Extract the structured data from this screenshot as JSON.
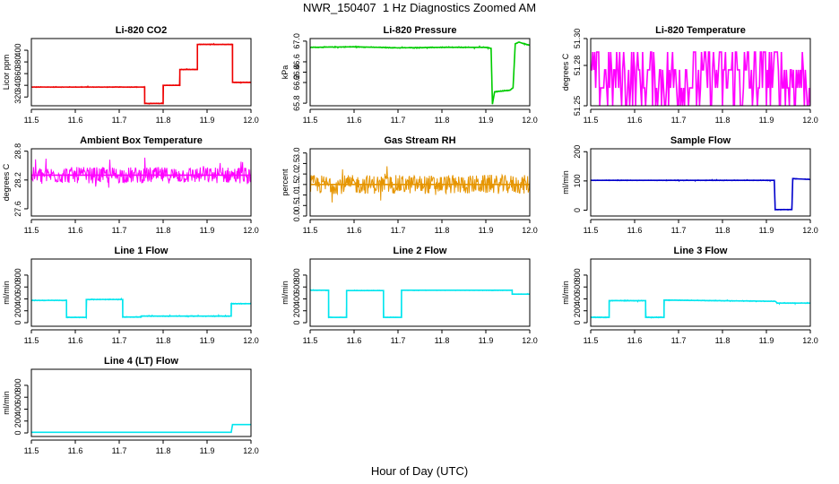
{
  "page": {
    "title": "NWR_150407  1 Hz Diagnostics Zoomed AM",
    "xaxis_title": "Hour of Day (UTC)"
  },
  "colors": {
    "red": "#ee0000",
    "green": "#00cc00",
    "magenta": "#ff00ff",
    "orange": "#e69500",
    "blue": "#0000cc",
    "cyan": "#00e5ee"
  },
  "chart_data": [
    {
      "type": "line",
      "title": "Li-820 CO2",
      "ylabel": "Licor ppm",
      "color": "red",
      "noise": 0.8,
      "xlim": [
        11.5,
        12.0
      ],
      "ylim": [
        305,
        420
      ],
      "xticks": [
        "11.5",
        "11.6",
        "11.7",
        "11.8",
        "11.9",
        "12.0"
      ],
      "yticks": [
        {
          "v": 320,
          "l": "320"
        },
        {
          "v": 340,
          "l": "340"
        },
        {
          "v": 360,
          "l": "360"
        },
        {
          "v": 380,
          "l": "380"
        },
        {
          "v": 400,
          "l": "400"
        }
      ],
      "series": [
        {
          "x": [
            11.5,
            11.758,
            11.758,
            11.8,
            11.8,
            11.8,
            11.8,
            11.838,
            11.838,
            11.878,
            11.878,
            11.958,
            11.958,
            12.0
          ],
          "y": [
            337,
            337,
            309,
            309,
            338,
            340,
            340,
            340,
            367,
            367,
            410,
            410,
            345,
            345
          ]
        }
      ]
    },
    {
      "type": "line",
      "title": "Li-820 Pressure",
      "ylabel": "kPa",
      "color": "green",
      "noise": 0.012,
      "xlim": [
        11.5,
        12.0
      ],
      "ylim": [
        65.75,
        67.05
      ],
      "xticks": [
        "11.5",
        "11.6",
        "11.7",
        "11.8",
        "11.9",
        "12.0"
      ],
      "yticks": [
        {
          "v": 65.8,
          "l": "65.8"
        },
        {
          "v": 66.2,
          "l": "66.2"
        },
        {
          "v": 66.4,
          "l": "66.4"
        },
        {
          "v": 66.6,
          "l": "66.6"
        },
        {
          "v": 67.0,
          "l": "67.0"
        }
      ],
      "series": [
        {
          "x": [
            11.5,
            11.6,
            11.7,
            11.8,
            11.9,
            11.912,
            11.915,
            11.92,
            11.955,
            11.962,
            11.967,
            11.975,
            12.0
          ],
          "y": [
            66.88,
            66.89,
            66.87,
            66.88,
            66.88,
            66.86,
            65.78,
            66.02,
            66.05,
            66.1,
            66.95,
            66.98,
            66.92
          ]
        }
      ]
    },
    {
      "type": "step_noise",
      "title": "Li-820 Temperature",
      "ylabel": "degrees C",
      "color": "magenta",
      "xlim": [
        11.5,
        12.0
      ],
      "ylim": [
        51.25,
        51.3
      ],
      "xticks": [
        "11.5",
        "11.6",
        "11.7",
        "11.8",
        "11.9",
        "12.0"
      ],
      "yticks": [
        {
          "v": 51.25,
          "l": "51.25"
        },
        {
          "v": 51.28,
          "l": "51.28"
        },
        {
          "v": 51.3,
          "l": "51.30"
        }
      ],
      "levels": [
        51.25,
        51.2633,
        51.2767,
        51.29
      ]
    },
    {
      "type": "line",
      "title": "Ambient Box Temperature",
      "ylabel": "degrees C",
      "color": "magenta",
      "noise": 0.17,
      "xlim": [
        11.5,
        12.0
      ],
      "ylim": [
        27.45,
        28.85
      ],
      "xticks": [
        "11.5",
        "11.6",
        "11.7",
        "11.8",
        "11.9",
        "12.0"
      ],
      "yticks": [
        {
          "v": 27.6,
          "l": "27.6"
        },
        {
          "v": 28.2,
          "l": "28.2"
        },
        {
          "v": 28.8,
          "l": "28.8"
        }
      ],
      "series": [
        {
          "x": [
            11.5,
            12.0
          ],
          "y": [
            28.3,
            28.3
          ]
        }
      ]
    },
    {
      "type": "line",
      "title": "Gas Stream RH",
      "ylabel": "percent",
      "color": "orange",
      "noise": 0.45,
      "xlim": [
        11.5,
        12.0
      ],
      "ylim": [
        0,
        3.2
      ],
      "xticks": [
        "11.5",
        "11.6",
        "11.7",
        "11.8",
        "11.9",
        "12.0"
      ],
      "yticks": [
        {
          "v": 0,
          "l": "0.0"
        },
        {
          "v": 0.5,
          "l": "0.5"
        },
        {
          "v": 1.0,
          "l": "1.0"
        },
        {
          "v": 1.5,
          "l": "1.5"
        },
        {
          "v": 2.0,
          "l": "2.0"
        },
        {
          "v": 2.5,
          "l": "2.5"
        },
        {
          "v": 3.0,
          "l": "3.0"
        }
      ],
      "series": [
        {
          "x": [
            11.5,
            12.0
          ],
          "y": [
            1.5,
            1.5
          ]
        }
      ]
    },
    {
      "type": "line",
      "title": "Sample Flow",
      "ylabel": "ml/min",
      "color": "blue",
      "noise": 1.5,
      "xlim": [
        11.5,
        12.0
      ],
      "ylim": [
        -20,
        210
      ],
      "xticks": [
        "11.5",
        "11.6",
        "11.7",
        "11.8",
        "11.9",
        "12.0"
      ],
      "yticks": [
        {
          "v": 0,
          "l": "0"
        },
        {
          "v": 100,
          "l": "100"
        },
        {
          "v": 200,
          "l": "200"
        }
      ],
      "series": [
        {
          "x": [
            11.5,
            11.918,
            11.92,
            11.958,
            11.96,
            12.0
          ],
          "y": [
            102,
            102,
            2,
            2,
            108,
            105
          ]
        }
      ]
    },
    {
      "type": "line",
      "title": "Line 1 Flow",
      "ylabel": "ml/min",
      "color": "cyan",
      "noise": 9,
      "xlim": [
        11.5,
        12.0
      ],
      "ylim": [
        -60,
        1070
      ],
      "xticks": [
        "11.5",
        "11.6",
        "11.7",
        "11.8",
        "11.9",
        "12.0"
      ],
      "yticks": [
        {
          "v": 0,
          "l": "0"
        },
        {
          "v": 200,
          "l": "200"
        },
        {
          "v": 400,
          "l": "400"
        },
        {
          "v": 600,
          "l": "600"
        },
        {
          "v": 800,
          "l": "800"
        }
      ],
      "series": [
        {
          "x": [
            11.5,
            11.58,
            11.58,
            11.625,
            11.625,
            11.708,
            11.708,
            11.75,
            11.75,
            11.955,
            11.955,
            12.0
          ],
          "y": [
            375,
            375,
            90,
            90,
            390,
            390,
            95,
            95,
            110,
            110,
            320,
            320
          ]
        }
      ]
    },
    {
      "type": "line",
      "title": "Line 2 Flow",
      "ylabel": "ml/min",
      "color": "cyan",
      "noise": 6,
      "xlim": [
        11.5,
        12.0
      ],
      "ylim": [
        -60,
        1070
      ],
      "xticks": [
        "11.5",
        "11.6",
        "11.7",
        "11.8",
        "11.9",
        "12.0"
      ],
      "yticks": [
        {
          "v": 0,
          "l": "0"
        },
        {
          "v": 200,
          "l": "200"
        },
        {
          "v": 400,
          "l": "400"
        },
        {
          "v": 600,
          "l": "600"
        },
        {
          "v": 800,
          "l": "800"
        }
      ],
      "series": [
        {
          "x": [
            11.5,
            11.542,
            11.542,
            11.583,
            11.583,
            11.667,
            11.667,
            11.708,
            11.708,
            11.96,
            11.96,
            12.0
          ],
          "y": [
            545,
            545,
            90,
            90,
            540,
            540,
            90,
            90,
            545,
            545,
            480,
            480
          ]
        }
      ]
    },
    {
      "type": "line",
      "title": "Line 3 Flow",
      "ylabel": "ml/min",
      "color": "cyan",
      "noise": 9,
      "xlim": [
        11.5,
        12.0
      ],
      "ylim": [
        -60,
        1070
      ],
      "xticks": [
        "11.5",
        "11.6",
        "11.7",
        "11.8",
        "11.9",
        "12.0"
      ],
      "yticks": [
        {
          "v": 0,
          "l": "0"
        },
        {
          "v": 200,
          "l": "200"
        },
        {
          "v": 400,
          "l": "400"
        },
        {
          "v": 600,
          "l": "600"
        },
        {
          "v": 800,
          "l": "800"
        }
      ],
      "series": [
        {
          "x": [
            11.5,
            11.542,
            11.542,
            11.625,
            11.625,
            11.667,
            11.667,
            11.92,
            11.925,
            12.0
          ],
          "y": [
            90,
            90,
            370,
            370,
            90,
            90,
            380,
            360,
            330,
            330
          ]
        }
      ]
    },
    {
      "type": "line",
      "title": "Line 4 (LT) Flow",
      "ylabel": "ml/min",
      "color": "cyan",
      "noise": 2,
      "xlim": [
        11.5,
        12.0
      ],
      "ylim": [
        -60,
        1070
      ],
      "xticks": [
        "11.5",
        "11.6",
        "11.7",
        "11.8",
        "11.9",
        "12.0"
      ],
      "yticks": [
        {
          "v": 0,
          "l": "0"
        },
        {
          "v": 200,
          "l": "200"
        },
        {
          "v": 400,
          "l": "400"
        },
        {
          "v": 600,
          "l": "600"
        },
        {
          "v": 800,
          "l": "800"
        }
      ],
      "series": [
        {
          "x": [
            11.5,
            11.955,
            11.958,
            12.0
          ],
          "y": [
            10,
            10,
            140,
            140
          ]
        }
      ]
    }
  ]
}
